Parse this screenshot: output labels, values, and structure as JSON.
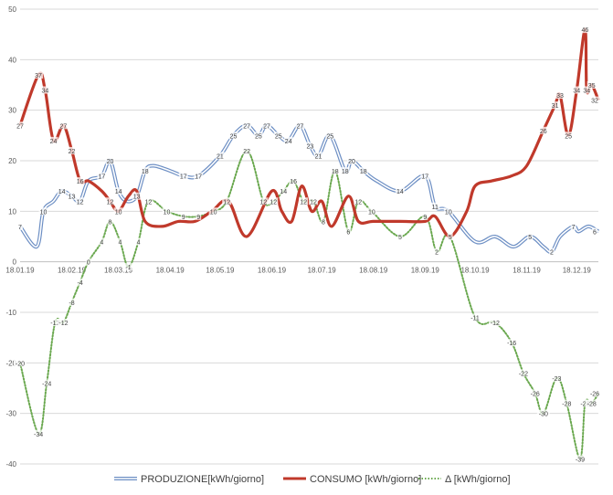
{
  "chart_data": {
    "type": "line",
    "title": "",
    "xlabel": "",
    "ylabel": "",
    "ylim": [
      -40,
      50
    ],
    "yticks": [
      -40,
      -30,
      -20,
      -10,
      0,
      10,
      20,
      30,
      40,
      50
    ],
    "grid": "horizontal",
    "legend_position": "bottom",
    "x_start": "2019-01-18",
    "x_end": "2019-12-31",
    "x_tick_labels": [
      "18.01.19",
      "18.02.19",
      "18.03.19",
      "18.04.19",
      "18.05.19",
      "18.06.19",
      "18.07.19",
      "18.08.19",
      "18.09.19",
      "18.10.19",
      "18.11.19",
      "18.12.19"
    ],
    "series": [
      {
        "name": "PRODUZIONE[kWh/giorno]",
        "color": "#6d8fc4",
        "style": "double-line",
        "points": [
          [
            "2019-01-18",
            7
          ],
          [
            "2019-01-28",
            3
          ],
          [
            "2019-02-01",
            10
          ],
          [
            "2019-02-07",
            12
          ],
          [
            "2019-02-12",
            14
          ],
          [
            "2019-02-18",
            13
          ],
          [
            "2019-02-23",
            12
          ],
          [
            "2019-02-28",
            16
          ],
          [
            "2019-03-08",
            17
          ],
          [
            "2019-03-13",
            20
          ],
          [
            "2019-03-18",
            14
          ],
          [
            "2019-03-23",
            12
          ],
          [
            "2019-03-29",
            13
          ],
          [
            "2019-04-03",
            18
          ],
          [
            "2019-04-08",
            19
          ],
          [
            "2019-04-18",
            18
          ],
          [
            "2019-04-26",
            17
          ],
          [
            "2019-05-05",
            17
          ],
          [
            "2019-05-18",
            21
          ],
          [
            "2019-05-26",
            25
          ],
          [
            "2019-06-03",
            27
          ],
          [
            "2019-06-10",
            25
          ],
          [
            "2019-06-15",
            27
          ],
          [
            "2019-06-22",
            25
          ],
          [
            "2019-06-28",
            24
          ],
          [
            "2019-07-05",
            27
          ],
          [
            "2019-07-11",
            23
          ],
          [
            "2019-07-16",
            21
          ],
          [
            "2019-07-23",
            25
          ],
          [
            "2019-08-01",
            18
          ],
          [
            "2019-08-05",
            20
          ],
          [
            "2019-08-12",
            18
          ],
          [
            "2019-08-20",
            16
          ],
          [
            "2019-09-03",
            14
          ],
          [
            "2019-09-18",
            17
          ],
          [
            "2019-09-24",
            11
          ],
          [
            "2019-10-02",
            10
          ],
          [
            "2019-10-18",
            4
          ],
          [
            "2019-10-30",
            5
          ],
          [
            "2019-11-10",
            3
          ],
          [
            "2019-11-20",
            5
          ],
          [
            "2019-11-28",
            3
          ],
          [
            "2019-12-03",
            2
          ],
          [
            "2019-12-08",
            5
          ],
          [
            "2019-12-16",
            7
          ],
          [
            "2019-12-19",
            6
          ],
          [
            "2019-12-25",
            7
          ],
          [
            "2019-12-31",
            6
          ]
        ],
        "labels": [
          [
            "2019-01-18",
            "7"
          ],
          [
            "2019-02-01",
            "10"
          ],
          [
            "2019-02-12",
            "14"
          ],
          [
            "2019-02-18",
            "13"
          ],
          [
            "2019-02-23",
            "12"
          ],
          [
            "2019-03-08",
            "17"
          ],
          [
            "2019-03-13",
            "20"
          ],
          [
            "2019-03-18",
            "14"
          ],
          [
            "2019-03-29",
            "13"
          ],
          [
            "2019-04-03",
            "18"
          ],
          [
            "2019-04-26",
            "17"
          ],
          [
            "2019-05-05",
            "17"
          ],
          [
            "2019-05-18",
            "21"
          ],
          [
            "2019-05-26",
            "25"
          ],
          [
            "2019-06-03",
            "27"
          ],
          [
            "2019-06-10",
            "25"
          ],
          [
            "2019-06-15",
            "27"
          ],
          [
            "2019-06-22",
            "25"
          ],
          [
            "2019-06-28",
            "24"
          ],
          [
            "2019-07-05",
            "27"
          ],
          [
            "2019-07-11",
            "23"
          ],
          [
            "2019-07-16",
            "21"
          ],
          [
            "2019-07-23",
            "25"
          ],
          [
            "2019-08-01",
            "18"
          ],
          [
            "2019-08-05",
            "20"
          ],
          [
            "2019-08-12",
            "18"
          ],
          [
            "2019-09-03",
            "14"
          ],
          [
            "2019-09-18",
            "17"
          ],
          [
            "2019-09-24",
            "11"
          ],
          [
            "2019-10-02",
            "10"
          ],
          [
            "2019-11-20",
            "5"
          ],
          [
            "2019-12-03",
            "2"
          ],
          [
            "2019-12-16",
            "7"
          ],
          [
            "2019-12-31",
            "6"
          ]
        ]
      },
      {
        "name": "CONSUMO [kWh/giorno]",
        "color": "#c0392b",
        "style": "solid",
        "points": [
          [
            "2019-01-18",
            27
          ],
          [
            "2019-01-29",
            37
          ],
          [
            "2019-02-02",
            34
          ],
          [
            "2019-02-07",
            24
          ],
          [
            "2019-02-13",
            27
          ],
          [
            "2019-02-18",
            22
          ],
          [
            "2019-02-23",
            16
          ],
          [
            "2019-02-28",
            16
          ],
          [
            "2019-03-08",
            14
          ],
          [
            "2019-03-13",
            12
          ],
          [
            "2019-03-18",
            10
          ],
          [
            "2019-03-24",
            13
          ],
          [
            "2019-03-29",
            14
          ],
          [
            "2019-04-03",
            8
          ],
          [
            "2019-04-13",
            7
          ],
          [
            "2019-04-23",
            8
          ],
          [
            "2019-05-03",
            8
          ],
          [
            "2019-05-13",
            10
          ],
          [
            "2019-05-23",
            12
          ],
          [
            "2019-06-03",
            5
          ],
          [
            "2019-06-18",
            14
          ],
          [
            "2019-06-24",
            10
          ],
          [
            "2019-06-30",
            8
          ],
          [
            "2019-07-06",
            15
          ],
          [
            "2019-07-12",
            10
          ],
          [
            "2019-07-18",
            12
          ],
          [
            "2019-07-24",
            7
          ],
          [
            "2019-08-03",
            13
          ],
          [
            "2019-08-09",
            8
          ],
          [
            "2019-08-18",
            8
          ],
          [
            "2019-09-03",
            8
          ],
          [
            "2019-09-18",
            8
          ],
          [
            "2019-09-24",
            9
          ],
          [
            "2019-10-03",
            5
          ],
          [
            "2019-10-13",
            10
          ],
          [
            "2019-10-18",
            15
          ],
          [
            "2019-10-28",
            16
          ],
          [
            "2019-11-09",
            17
          ],
          [
            "2019-11-18",
            19
          ],
          [
            "2019-11-28",
            26
          ],
          [
            "2019-12-05",
            31
          ],
          [
            "2019-12-08",
            33
          ],
          [
            "2019-12-13",
            25
          ],
          [
            "2019-12-18",
            34
          ],
          [
            "2019-12-23",
            46
          ],
          [
            "2019-12-24",
            34
          ],
          [
            "2019-12-27",
            35
          ],
          [
            "2019-12-31",
            32
          ]
        ],
        "labels": [
          [
            "2019-01-18",
            "27"
          ],
          [
            "2019-01-29",
            "37"
          ],
          [
            "2019-02-02",
            "34"
          ],
          [
            "2019-02-07",
            "24"
          ],
          [
            "2019-02-13",
            "27"
          ],
          [
            "2019-02-18",
            "22"
          ],
          [
            "2019-02-23",
            "16"
          ],
          [
            "2019-03-13",
            "12"
          ],
          [
            "2019-03-18",
            "10"
          ],
          [
            "2019-11-28",
            "26"
          ],
          [
            "2019-12-05",
            "31"
          ],
          [
            "2019-12-08",
            "33"
          ],
          [
            "2019-12-13",
            "25"
          ],
          [
            "2019-12-18",
            "34"
          ],
          [
            "2019-12-23",
            "46"
          ],
          [
            "2019-12-24",
            "34"
          ],
          [
            "2019-12-27",
            "35"
          ],
          [
            "2019-12-31",
            "32"
          ]
        ]
      },
      {
        "name": "Δ [kWh/giorno]",
        "color": "#6aa84f",
        "style": "dotted",
        "points": [
          [
            "2019-01-18",
            -20
          ],
          [
            "2019-01-29",
            -34
          ],
          [
            "2019-02-03",
            -24
          ],
          [
            "2019-02-08",
            -12
          ],
          [
            "2019-02-13",
            -12
          ],
          [
            "2019-02-18",
            -8
          ],
          [
            "2019-02-23",
            -4
          ],
          [
            "2019-02-28",
            0
          ],
          [
            "2019-03-08",
            4
          ],
          [
            "2019-03-13",
            8
          ],
          [
            "2019-03-19",
            4
          ],
          [
            "2019-03-24",
            -1
          ],
          [
            "2019-03-30",
            4
          ],
          [
            "2019-04-05",
            12
          ],
          [
            "2019-04-16",
            10
          ],
          [
            "2019-04-26",
            9
          ],
          [
            "2019-05-05",
            9
          ],
          [
            "2019-05-14",
            10
          ],
          [
            "2019-05-22",
            12
          ],
          [
            "2019-06-03",
            22
          ],
          [
            "2019-06-13",
            12
          ],
          [
            "2019-06-19",
            12
          ],
          [
            "2019-06-25",
            14
          ],
          [
            "2019-07-01",
            16
          ],
          [
            "2019-07-07",
            12
          ],
          [
            "2019-07-13",
            12
          ],
          [
            "2019-07-19",
            8
          ],
          [
            "2019-07-26",
            18
          ],
          [
            "2019-08-03",
            6
          ],
          [
            "2019-08-09",
            12
          ],
          [
            "2019-08-17",
            10
          ],
          [
            "2019-09-03",
            5
          ],
          [
            "2019-09-18",
            9
          ],
          [
            "2019-09-25",
            2
          ],
          [
            "2019-10-03",
            5
          ],
          [
            "2019-10-18",
            -11
          ],
          [
            "2019-10-30",
            -12
          ],
          [
            "2019-11-09",
            -16
          ],
          [
            "2019-11-16",
            -22
          ],
          [
            "2019-11-23",
            -26
          ],
          [
            "2019-11-28",
            -30
          ],
          [
            "2019-12-06",
            -23
          ],
          [
            "2019-12-12",
            -28
          ],
          [
            "2019-12-20",
            -39
          ],
          [
            "2019-12-23",
            -28
          ],
          [
            "2019-12-27",
            -28
          ],
          [
            "2019-12-31",
            -26
          ]
        ],
        "labels": [
          [
            "2019-01-18",
            "-20"
          ],
          [
            "2019-01-29",
            "-34"
          ],
          [
            "2019-02-03",
            "-24"
          ],
          [
            "2019-02-08",
            "-12"
          ],
          [
            "2019-02-13",
            "-12"
          ],
          [
            "2019-02-18",
            "-8"
          ],
          [
            "2019-02-23",
            "-4"
          ],
          [
            "2019-02-28",
            "0"
          ],
          [
            "2019-03-08",
            "4"
          ],
          [
            "2019-03-13",
            "8"
          ],
          [
            "2019-03-19",
            "4"
          ],
          [
            "2019-03-24",
            "-1"
          ],
          [
            "2019-03-30",
            "4"
          ],
          [
            "2019-04-05",
            "12"
          ],
          [
            "2019-04-16",
            "10"
          ],
          [
            "2019-04-26",
            "9"
          ],
          [
            "2019-05-05",
            "9"
          ],
          [
            "2019-05-14",
            "10"
          ],
          [
            "2019-05-22",
            "12"
          ],
          [
            "2019-06-03",
            "22"
          ],
          [
            "2019-06-13",
            "12"
          ],
          [
            "2019-06-19",
            "12"
          ],
          [
            "2019-06-25",
            "14"
          ],
          [
            "2019-07-01",
            "16"
          ],
          [
            "2019-07-07",
            "12"
          ],
          [
            "2019-07-13",
            "12"
          ],
          [
            "2019-07-19",
            "8"
          ],
          [
            "2019-07-26",
            "18"
          ],
          [
            "2019-08-03",
            "6"
          ],
          [
            "2019-08-09",
            "12"
          ],
          [
            "2019-08-17",
            "10"
          ],
          [
            "2019-09-03",
            "5"
          ],
          [
            "2019-09-18",
            "9"
          ],
          [
            "2019-09-25",
            "2"
          ],
          [
            "2019-10-03",
            "5"
          ],
          [
            "2019-10-18",
            "-11"
          ],
          [
            "2019-10-30",
            "-12"
          ],
          [
            "2019-11-09",
            "-16"
          ],
          [
            "2019-11-16",
            "-22"
          ],
          [
            "2019-11-23",
            "-26"
          ],
          [
            "2019-11-28",
            "-30"
          ],
          [
            "2019-12-06",
            "-23"
          ],
          [
            "2019-12-12",
            "-28"
          ],
          [
            "2019-12-20",
            "-39"
          ],
          [
            "2019-12-23",
            "-28"
          ],
          [
            "2019-12-27",
            "-28"
          ],
          [
            "2019-12-31",
            "-26"
          ]
        ]
      }
    ]
  }
}
